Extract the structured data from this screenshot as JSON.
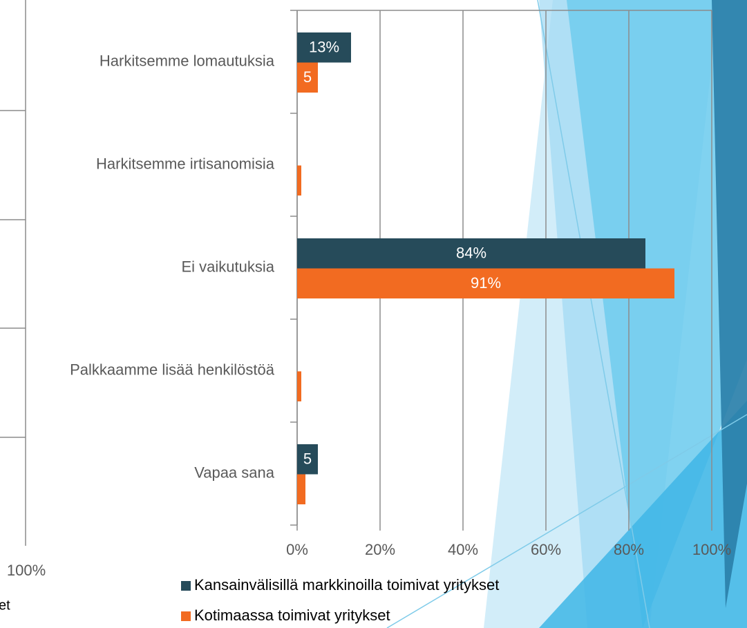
{
  "chart_data": {
    "type": "hbar",
    "categories": [
      "Harkitsemme lomautuksia",
      "Harkitsemme irtisanomisia",
      "Ei vaikutuksia",
      "Palkkaamme lisää henkilöstöä",
      "Vapaa sana"
    ],
    "series": [
      {
        "name": "Kansainvälisillä markkinoilla toimivat yritykset",
        "color": "#264b5a",
        "values": [
          13,
          0,
          84,
          0,
          5
        ],
        "value_labels": [
          "13%",
          null,
          "84%",
          null,
          "5"
        ]
      },
      {
        "name": "Kotimaassa toimivat yritykset",
        "color": "#f26b21",
        "values": [
          5,
          1,
          91,
          1,
          2
        ],
        "value_labels": [
          "5",
          null,
          "91%",
          null,
          null
        ]
      }
    ],
    "xlim": [
      0,
      100
    ],
    "xticks": [
      {
        "value": 0,
        "label": "0%"
      },
      {
        "value": 20,
        "label": "20%"
      },
      {
        "value": 40,
        "label": "40%"
      },
      {
        "value": 60,
        "label": "60%"
      },
      {
        "value": 80,
        "label": "80%"
      },
      {
        "value": 100,
        "label": "100%"
      }
    ],
    "grid": true
  },
  "left_fragments": [
    "100%",
    "et"
  ]
}
